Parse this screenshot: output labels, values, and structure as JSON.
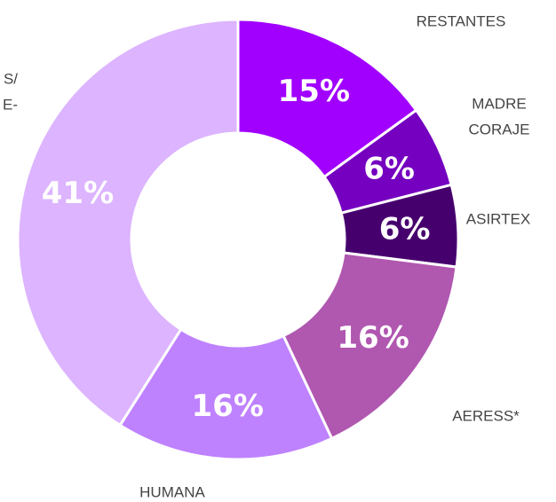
{
  "chart_data": {
    "type": "donut",
    "categories": [
      [
        "RESTANTES"
      ],
      [
        "MADRE",
        "CORAJE"
      ],
      [
        "ASIRTEX"
      ],
      [
        "AERESS*"
      ],
      [
        "HUMANA"
      ],
      [
        "S/",
        "E-"
      ]
    ],
    "values": [
      15,
      6,
      6,
      16,
      16,
      41
    ],
    "value_labels": [
      "15%",
      "6%",
      "6%",
      "16%",
      "16%",
      "41%"
    ],
    "colors": [
      "#a100ff",
      "#7500c0",
      "#46006e",
      "#b057b0",
      "#be82ff",
      "#dcb4ff"
    ]
  }
}
